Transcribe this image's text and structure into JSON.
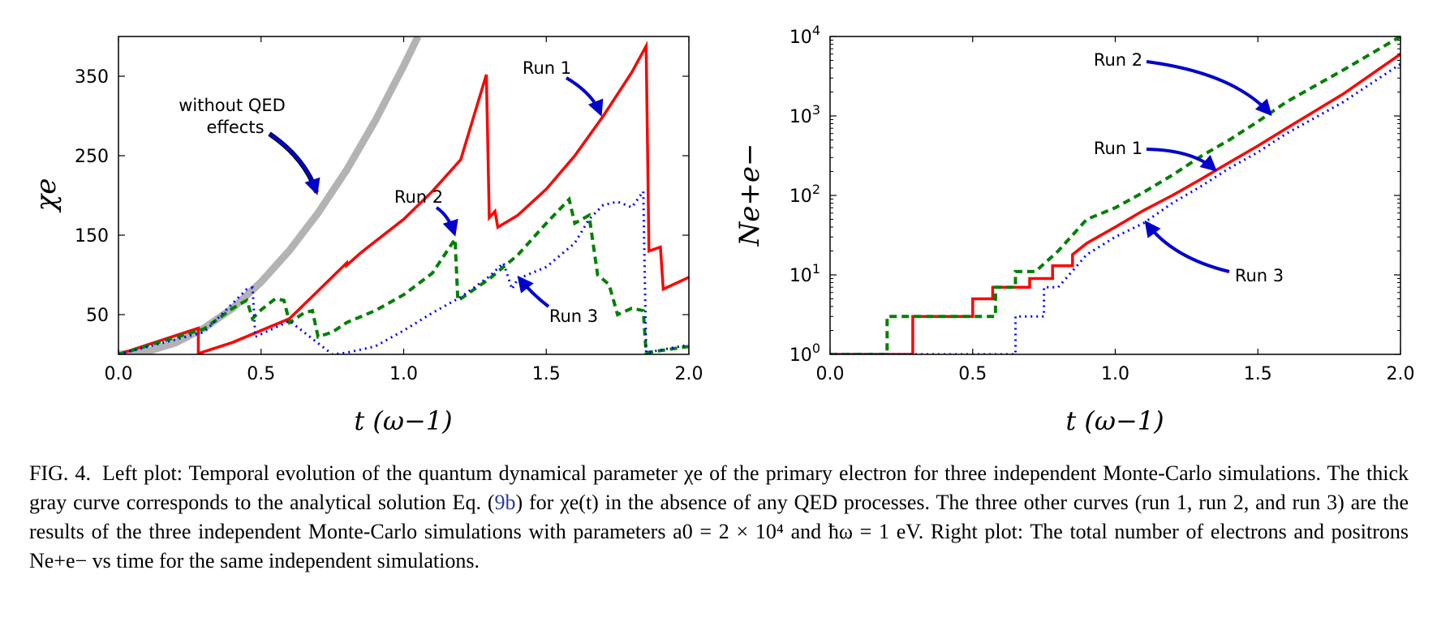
{
  "figure": {
    "left_panel": {
      "ylabel": "χe",
      "xlabel": "t   (ω−1)",
      "annotations": {
        "noqed_line1": "without QED",
        "noqed_line2": "effects",
        "run1": "Run 1",
        "run2": "Run 2",
        "run3": "Run 3"
      }
    },
    "right_panel": {
      "ylabel": "Ne+e−",
      "xlabel": "t   (ω−1)",
      "annotations": {
        "run1": "Run 1",
        "run2": "Run 2",
        "run3": "Run 3"
      }
    }
  },
  "chart_data": [
    {
      "type": "line",
      "xlabel": "t (ω^-1)",
      "ylabel": "χ_e",
      "xlim": [
        0,
        2.0
      ],
      "ylim": [
        0,
        400
      ],
      "xticks": [
        "0.0",
        "0.5",
        "1.0",
        "1.5",
        "2.0"
      ],
      "yticks": [
        "50",
        "150",
        "250",
        "350"
      ],
      "grid": false,
      "series": [
        {
          "name": "without QED effects",
          "color": "#b3b3b3",
          "style": "solid-thick",
          "x": [
            0,
            0.1,
            0.2,
            0.3,
            0.4,
            0.5,
            0.6,
            0.7,
            0.8,
            0.9,
            1.0,
            1.05
          ],
          "y": [
            0,
            3.6,
            14.5,
            33,
            58,
            91,
            131,
            178,
            232,
            294,
            363,
            400
          ]
        },
        {
          "name": "Run 1",
          "color": "#ff0000",
          "style": "solid",
          "x": [
            0,
            0.28,
            0.28,
            0.4,
            0.6,
            0.8,
            0.8,
            0.85,
            0.9,
            1.0,
            1.1,
            1.2,
            1.29,
            1.3,
            1.32,
            1.33,
            1.4,
            1.5,
            1.6,
            1.7,
            1.8,
            1.85,
            1.86,
            1.9,
            1.91,
            2.0
          ],
          "y": [
            0,
            33,
            1,
            15,
            45,
            115,
            112,
            128,
            142,
            170,
            205,
            245,
            352,
            172,
            180,
            160,
            175,
            208,
            250,
            300,
            355,
            388,
            130,
            135,
            82,
            97
          ]
        },
        {
          "name": "Run 2",
          "color": "#008000",
          "style": "dashed",
          "x": [
            0,
            0.3,
            0.4,
            0.45,
            0.47,
            0.5,
            0.55,
            0.58,
            0.6,
            0.65,
            0.68,
            0.7,
            0.75,
            0.8,
            0.9,
            1.0,
            1.1,
            1.18,
            1.19,
            1.2,
            1.3,
            1.4,
            1.5,
            1.58,
            1.6,
            1.65,
            1.68,
            1.72,
            1.75,
            1.8,
            1.84,
            1.85,
            2.0
          ],
          "y": [
            0,
            32,
            58,
            68,
            45,
            56,
            70,
            68,
            40,
            52,
            55,
            22,
            28,
            40,
            55,
            75,
            102,
            145,
            68,
            70,
            95,
            125,
            165,
            195,
            165,
            175,
            100,
            88,
            50,
            58,
            55,
            2,
            10
          ]
        },
        {
          "name": "Run 3",
          "color": "#0000ff",
          "style": "dotted",
          "x": [
            0,
            0.3,
            0.45,
            0.47,
            0.48,
            0.6,
            0.75,
            0.8,
            0.9,
            1.0,
            1.1,
            1.2,
            1.3,
            1.35,
            1.38,
            1.4,
            1.5,
            1.6,
            1.65,
            1.7,
            1.75,
            1.8,
            1.84,
            1.85,
            2.0
          ],
          "y": [
            0,
            28,
            82,
            84,
            22,
            42,
            0,
            2,
            10,
            30,
            52,
            72,
            98,
            115,
            82,
            95,
            110,
            140,
            170,
            188,
            192,
            185,
            205,
            2,
            12
          ]
        }
      ]
    },
    {
      "type": "line",
      "xlabel": "t (ω^-1)",
      "ylabel": "N_{e+e-}",
      "xlim": [
        0,
        2.0
      ],
      "ylim": [
        1,
        10000
      ],
      "yscale": "log",
      "xticks": [
        "0.0",
        "0.5",
        "1.0",
        "1.5",
        "2.0"
      ],
      "yticks": [
        "10^0",
        "10^1",
        "10^2",
        "10^3",
        "10^4"
      ],
      "grid": false,
      "series": [
        {
          "name": "Run 1",
          "color": "#ff0000",
          "style": "solid-step",
          "x": [
            0,
            0.29,
            0.29,
            0.5,
            0.5,
            0.57,
            0.57,
            0.7,
            0.7,
            0.78,
            0.78,
            0.85,
            0.85,
            0.9,
            1.0,
            1.1,
            1.2,
            1.3,
            1.4,
            1.5,
            1.6,
            1.8,
            2.0
          ],
          "y": [
            1,
            1,
            3,
            3,
            5,
            5,
            7,
            7,
            9,
            9,
            13,
            13,
            18,
            25,
            40,
            65,
            100,
            160,
            260,
            420,
            700,
            1900,
            6000
          ]
        },
        {
          "name": "Run 2",
          "color": "#008000",
          "style": "dashed-step",
          "x": [
            0,
            0.2,
            0.2,
            0.58,
            0.58,
            0.65,
            0.65,
            0.72,
            0.8,
            0.9,
            1.0,
            1.1,
            1.2,
            1.3,
            1.4,
            1.5,
            1.6,
            1.8,
            2.0
          ],
          "y": [
            1,
            1,
            3,
            3,
            7,
            7,
            11,
            11,
            20,
            50,
            70,
            110,
            180,
            310,
            500,
            850,
            1500,
            3800,
            10000
          ]
        },
        {
          "name": "Run 3",
          "color": "#0000ff",
          "style": "dotted-step",
          "x": [
            0,
            0.65,
            0.65,
            0.75,
            0.75,
            0.8,
            0.9,
            1.0,
            1.1,
            1.2,
            1.3,
            1.4,
            1.5,
            1.6,
            1.8,
            2.0
          ],
          "y": [
            1,
            1,
            3,
            3,
            7,
            7,
            18,
            30,
            45,
            80,
            130,
            220,
            350,
            600,
            1500,
            4500
          ]
        }
      ]
    }
  ],
  "caption": {
    "label": "FIG. 4.",
    "text_1": "Left plot: Temporal evolution of the quantum dynamical parameter χe of the primary electron for three independent Monte-Carlo simulations. The thick gray curve corresponds to the analytical solution Eq. (",
    "ref": "9b",
    "text_2": ") for χe(t) in the absence of any QED processes. The three other curves (run 1, run 2, and run 3) are the results of the three independent Monte-Carlo simulations with parameters a0 = 2 × 10⁴ and ħω = 1 eV. Right plot: The total number of electrons and positrons Ne+e− vs time for the same independent simulations."
  }
}
